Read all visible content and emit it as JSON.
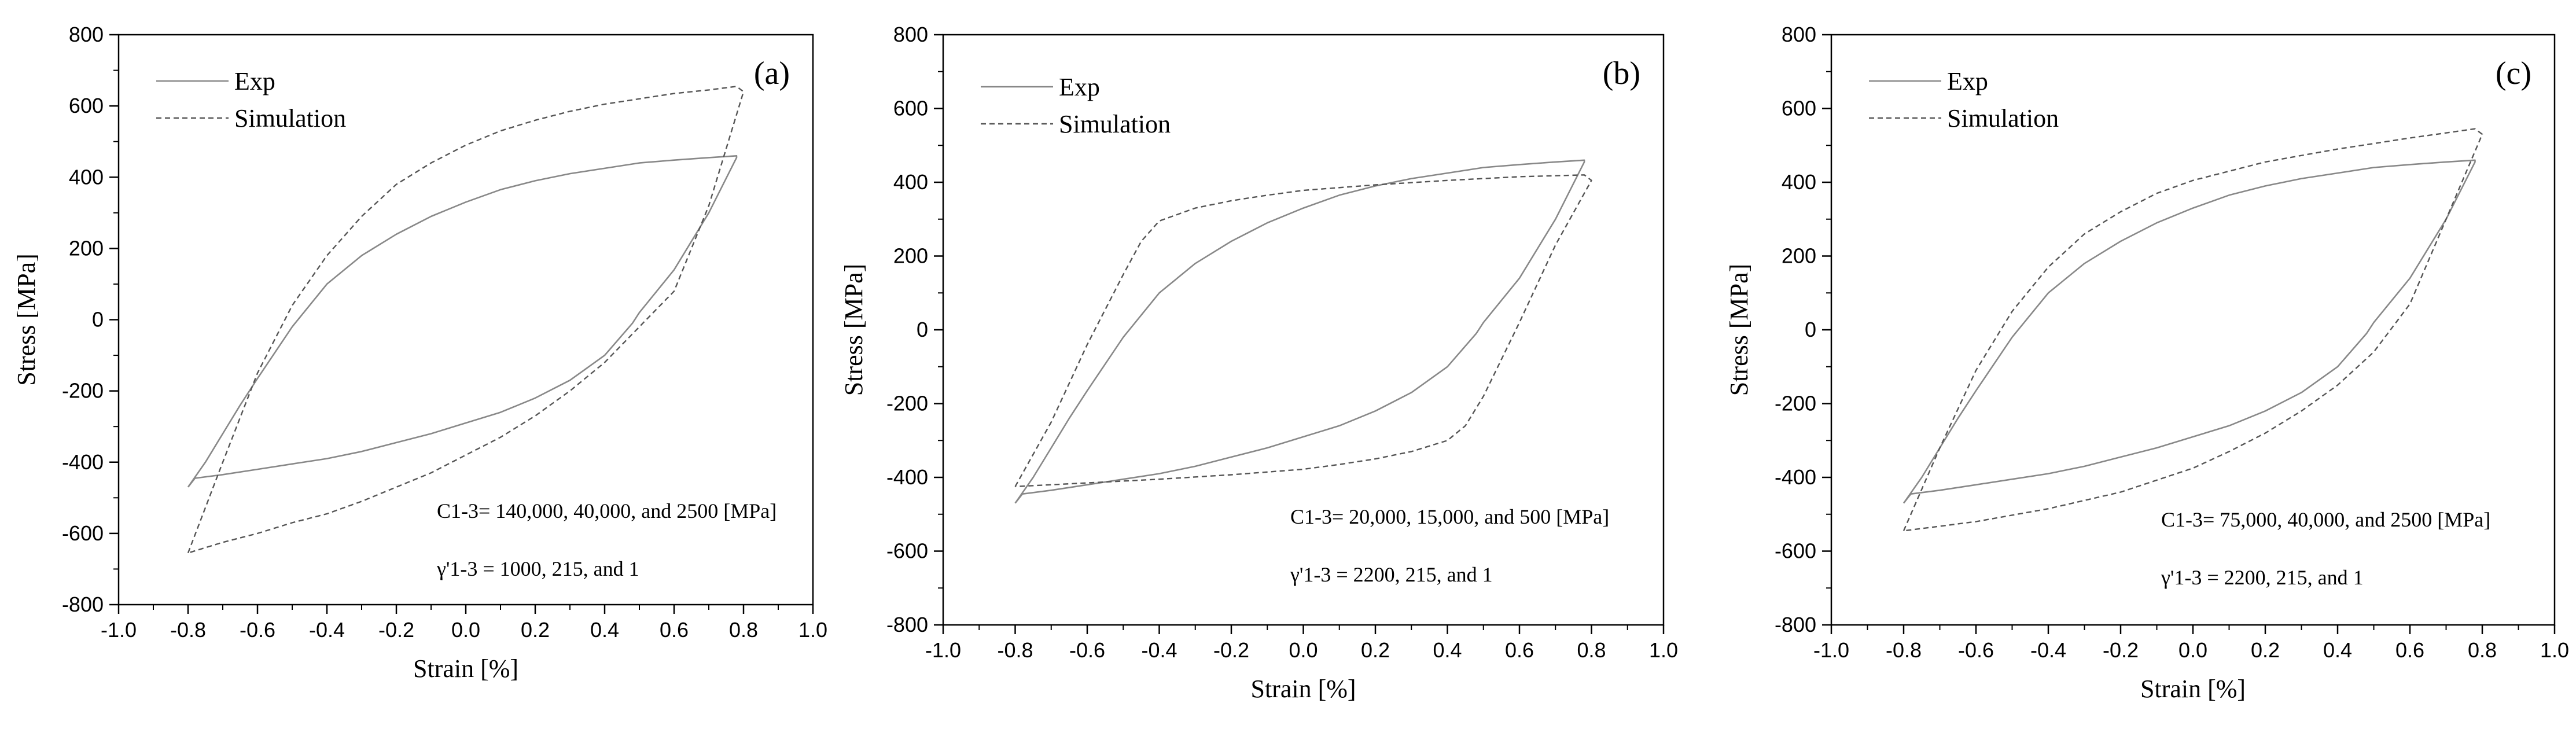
{
  "chart_data": [
    {
      "type": "line",
      "panel_label": "(a)",
      "xlabel": "Strain [%]",
      "ylabel": "Stress [MPa]",
      "xlim": [
        -1.0,
        1.0
      ],
      "ylim": [
        -800,
        800
      ],
      "xticks": [
        -1.0,
        -0.8,
        -0.6,
        -0.4,
        -0.2,
        0.0,
        0.2,
        0.4,
        0.6,
        0.8,
        1.0
      ],
      "xtick_labels": [
        "-1.0",
        "-0.8",
        "-0.6",
        "-0.4",
        "-0.2",
        "0.0",
        "0.2",
        "0.4",
        "0.6",
        "0.8",
        "1.0"
      ],
      "yticks": [
        -800,
        -600,
        -400,
        -200,
        0,
        200,
        400,
        600,
        800
      ],
      "ytick_labels": [
        "-800",
        "-600",
        "-400",
        "-200",
        "0",
        "200",
        "400",
        "600",
        "800"
      ],
      "legend": [
        "Exp",
        "Simulation"
      ],
      "annotations": [
        "C1-3= 140,000, 40,000, and 2500 [MPa]",
        "γ'1-3 = 1000, 215, and 1"
      ],
      "series": [
        {
          "name": "Exp",
          "style": "solid",
          "x": [
            -0.8,
            -0.75,
            -0.7,
            -0.65,
            -0.6,
            -0.5,
            -0.4,
            -0.3,
            -0.2,
            -0.1,
            0.0,
            0.1,
            0.2,
            0.3,
            0.4,
            0.5,
            0.6,
            0.7,
            0.78,
            0.78,
            0.7,
            0.6,
            0.5,
            0.48,
            0.4,
            0.3,
            0.2,
            0.1,
            0.0,
            -0.1,
            -0.2,
            -0.3,
            -0.4,
            -0.5,
            -0.6,
            -0.7,
            -0.78,
            -0.8
          ],
          "y": [
            -470,
            -400,
            -320,
            -240,
            -165,
            -20,
            100,
            180,
            240,
            290,
            330,
            365,
            390,
            410,
            425,
            440,
            448,
            455,
            460,
            455,
            300,
            140,
            20,
            -10,
            -100,
            -170,
            -220,
            -260,
            -290,
            -320,
            -345,
            -370,
            -390,
            -405,
            -420,
            -435,
            -445,
            -470
          ]
        },
        {
          "name": "Simulation",
          "style": "dashed",
          "x": [
            -0.8,
            -0.7,
            -0.6,
            -0.5,
            -0.4,
            -0.3,
            -0.2,
            -0.1,
            0.0,
            0.1,
            0.2,
            0.3,
            0.4,
            0.5,
            0.6,
            0.7,
            0.78,
            0.8,
            0.7,
            0.6,
            0.5,
            0.4,
            0.3,
            0.2,
            0.1,
            0.0,
            -0.1,
            -0.2,
            -0.3,
            -0.4,
            -0.5,
            -0.6,
            -0.7,
            -0.8
          ],
          "y": [
            -655,
            -400,
            -150,
            40,
            180,
            290,
            380,
            440,
            490,
            530,
            560,
            585,
            605,
            620,
            635,
            645,
            655,
            640,
            320,
            80,
            -20,
            -120,
            -200,
            -270,
            -330,
            -380,
            -430,
            -470,
            -510,
            -545,
            -570,
            -600,
            -625,
            -655
          ]
        }
      ]
    },
    {
      "type": "line",
      "panel_label": "(b)",
      "xlabel": "Strain [%]",
      "ylabel": "Stress [MPa]",
      "xlim": [
        -1.0,
        1.0
      ],
      "ylim": [
        -800,
        800
      ],
      "xticks": [
        -1.0,
        -0.8,
        -0.6,
        -0.4,
        -0.2,
        0.0,
        0.2,
        0.4,
        0.6,
        0.8,
        1.0
      ],
      "xtick_labels": [
        "-1.0",
        "-0.8",
        "-0.6",
        "-0.4",
        "-0.2",
        "0.0",
        "0.2",
        "0.4",
        "0.6",
        "0.8",
        "1.0"
      ],
      "yticks": [
        -800,
        -600,
        -400,
        -200,
        0,
        200,
        400,
        600,
        800
      ],
      "ytick_labels": [
        "-800",
        "-600",
        "-400",
        "-200",
        "0",
        "200",
        "400",
        "600",
        "800"
      ],
      "legend": [
        "Exp",
        "Simulation"
      ],
      "annotations": [
        "C1-3= 20,000, 15,000, and 500 [MPa]",
        "γ'1-3 = 2200, 215, and 1"
      ],
      "series": [
        {
          "name": "Exp",
          "style": "solid",
          "x": [
            -0.8,
            -0.75,
            -0.7,
            -0.65,
            -0.6,
            -0.5,
            -0.4,
            -0.3,
            -0.2,
            -0.1,
            0.0,
            0.1,
            0.2,
            0.3,
            0.4,
            0.5,
            0.6,
            0.7,
            0.78,
            0.78,
            0.7,
            0.6,
            0.5,
            0.48,
            0.4,
            0.3,
            0.2,
            0.1,
            0.0,
            -0.1,
            -0.2,
            -0.3,
            -0.4,
            -0.5,
            -0.6,
            -0.7,
            -0.78,
            -0.8
          ],
          "y": [
            -470,
            -400,
            -320,
            -240,
            -165,
            -20,
            100,
            180,
            240,
            290,
            330,
            365,
            390,
            410,
            425,
            440,
            448,
            455,
            460,
            455,
            300,
            140,
            20,
            -10,
            -100,
            -170,
            -220,
            -260,
            -290,
            -320,
            -345,
            -370,
            -390,
            -405,
            -420,
            -435,
            -445,
            -470
          ]
        },
        {
          "name": "Simulation",
          "style": "dashed",
          "x": [
            -0.8,
            -0.7,
            -0.6,
            -0.5,
            -0.45,
            -0.4,
            -0.3,
            -0.2,
            -0.1,
            0.0,
            0.2,
            0.4,
            0.6,
            0.78,
            0.8,
            0.7,
            0.6,
            0.5,
            0.45,
            0.4,
            0.3,
            0.2,
            0.1,
            0.0,
            -0.2,
            -0.4,
            -0.6,
            -0.8
          ],
          "y": [
            -425,
            -250,
            -40,
            150,
            240,
            295,
            330,
            350,
            365,
            378,
            393,
            405,
            415,
            420,
            405,
            230,
            20,
            -180,
            -260,
            -300,
            -330,
            -350,
            -365,
            -378,
            -393,
            -405,
            -415,
            -425
          ]
        }
      ]
    },
    {
      "type": "line",
      "panel_label": "(c)",
      "xlabel": "Strain [%]",
      "ylabel": "Stress [MPa]",
      "xlim": [
        -1.0,
        1.0
      ],
      "ylim": [
        -800,
        800
      ],
      "xticks": [
        -1.0,
        -0.8,
        -0.6,
        -0.4,
        -0.2,
        0.0,
        0.2,
        0.4,
        0.6,
        0.8,
        1.0
      ],
      "xtick_labels": [
        "-1.0",
        "-0.8",
        "-0.6",
        "-0.4",
        "-0.2",
        "0.0",
        "0.2",
        "0.4",
        "0.6",
        "0.8",
        "1.0"
      ],
      "yticks": [
        -800,
        -600,
        -400,
        -200,
        0,
        200,
        400,
        600,
        800
      ],
      "ytick_labels": [
        "-800",
        "-600",
        "-400",
        "-200",
        "0",
        "200",
        "400",
        "600",
        "800"
      ],
      "legend": [
        "Exp",
        "Simulation"
      ],
      "annotations": [
        "C1-3= 75,000, 40,000, and 2500 [MPa]",
        "γ'1-3 = 2200, 215, and 1"
      ],
      "series": [
        {
          "name": "Exp",
          "style": "solid",
          "x": [
            -0.8,
            -0.75,
            -0.7,
            -0.65,
            -0.6,
            -0.5,
            -0.4,
            -0.3,
            -0.2,
            -0.1,
            0.0,
            0.1,
            0.2,
            0.3,
            0.4,
            0.5,
            0.6,
            0.7,
            0.78,
            0.78,
            0.7,
            0.6,
            0.5,
            0.48,
            0.4,
            0.3,
            0.2,
            0.1,
            0.0,
            -0.1,
            -0.2,
            -0.3,
            -0.4,
            -0.5,
            -0.6,
            -0.7,
            -0.78,
            -0.8
          ],
          "y": [
            -470,
            -400,
            -320,
            -240,
            -165,
            -20,
            100,
            180,
            240,
            290,
            330,
            365,
            390,
            410,
            425,
            440,
            448,
            455,
            460,
            455,
            300,
            140,
            20,
            -10,
            -100,
            -170,
            -220,
            -260,
            -290,
            -320,
            -345,
            -370,
            -390,
            -405,
            -420,
            -435,
            -445,
            -470
          ]
        },
        {
          "name": "Simulation",
          "style": "dashed",
          "x": [
            -0.8,
            -0.7,
            -0.6,
            -0.5,
            -0.4,
            -0.3,
            -0.2,
            -0.1,
            0.0,
            0.2,
            0.4,
            0.6,
            0.78,
            0.8,
            0.7,
            0.6,
            0.5,
            0.4,
            0.3,
            0.2,
            0.1,
            0.0,
            -0.2,
            -0.4,
            -0.6,
            -0.8
          ],
          "y": [
            -545,
            -320,
            -110,
            50,
            170,
            260,
            320,
            370,
            405,
            455,
            490,
            520,
            545,
            530,
            300,
            70,
            -60,
            -150,
            -220,
            -280,
            -330,
            -375,
            -440,
            -485,
            -520,
            -545
          ]
        }
      ]
    }
  ]
}
